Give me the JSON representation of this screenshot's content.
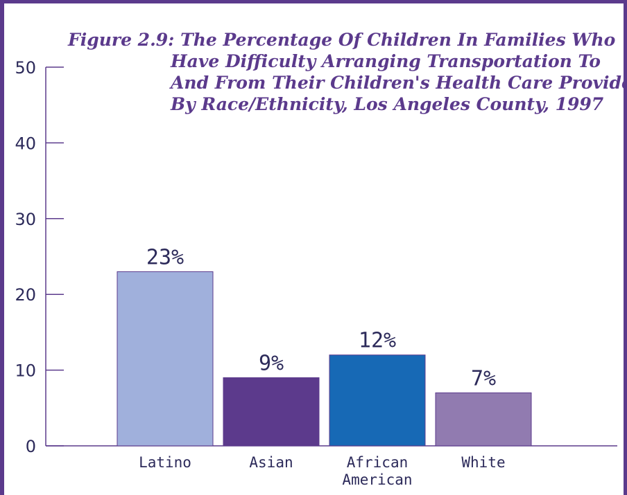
{
  "chart_data": {
    "type": "bar",
    "title_lines": [
      "Figure 2.9: The Percentage Of Children In Families Who",
      "Have Difficulty Arranging Transportation To",
      "And From Their Children's Health Care Provider",
      "By Race/Ethnicity, Los Angeles County, 1997"
    ],
    "categories": [
      [
        "Latino"
      ],
      [
        "Asian"
      ],
      [
        "African",
        "American"
      ],
      [
        "White"
      ]
    ],
    "values": [
      23,
      9,
      12,
      7
    ],
    "data_labels": [
      "23%",
      "9%",
      "12%",
      "7%"
    ],
    "yticks": [
      "0",
      "10",
      "20",
      "30",
      "40",
      "50"
    ],
    "ylim": [
      0,
      50
    ],
    "bar_colors": [
      "#a0b0dc",
      "#5c3a8c",
      "#1769b5",
      "#917bb0"
    ],
    "axis_color": "#5b3a8c",
    "text_color": "#2c2a5a",
    "grid": false,
    "legend": "none"
  }
}
